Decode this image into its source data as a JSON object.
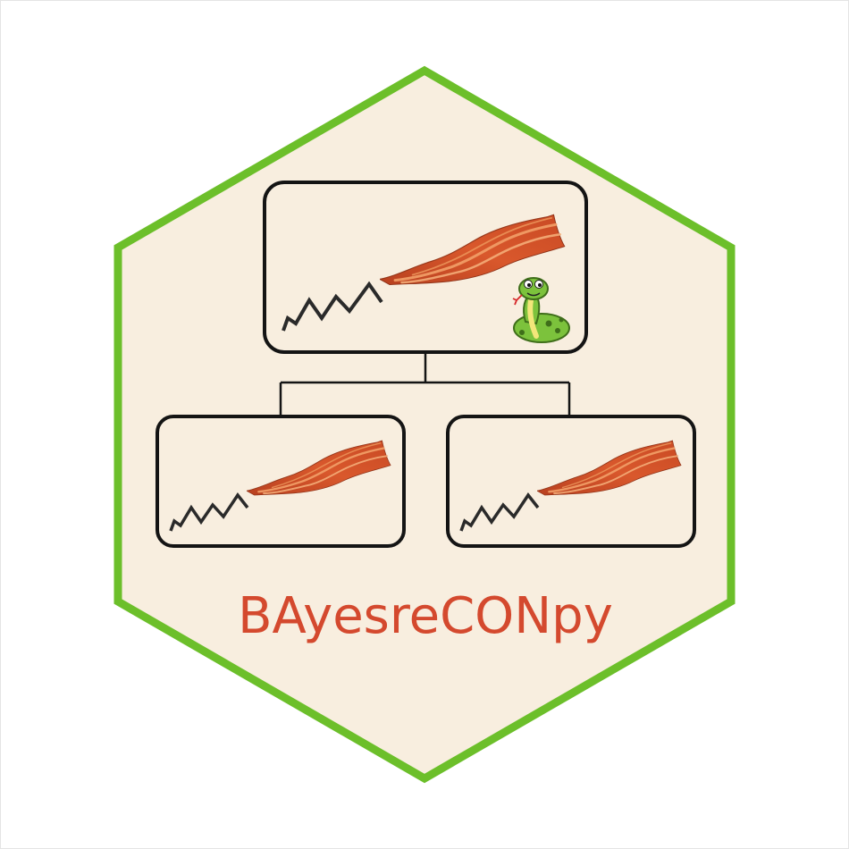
{
  "logo": {
    "package_name": "BAyesreCONpy"
  },
  "colors": {
    "hex_border": "#6cbf2a",
    "hex_fill": "#f8eedf",
    "title_color": "#d4492e",
    "box_stroke": "#141414",
    "bacon_base": "#d2542a",
    "bacon_stripe": "#f2a068",
    "snake_body": "#7cc23c",
    "snake_belly": "#f3e67a"
  },
  "icons": [
    "bacon-icon",
    "snake-icon",
    "zigzag-line-icon"
  ]
}
